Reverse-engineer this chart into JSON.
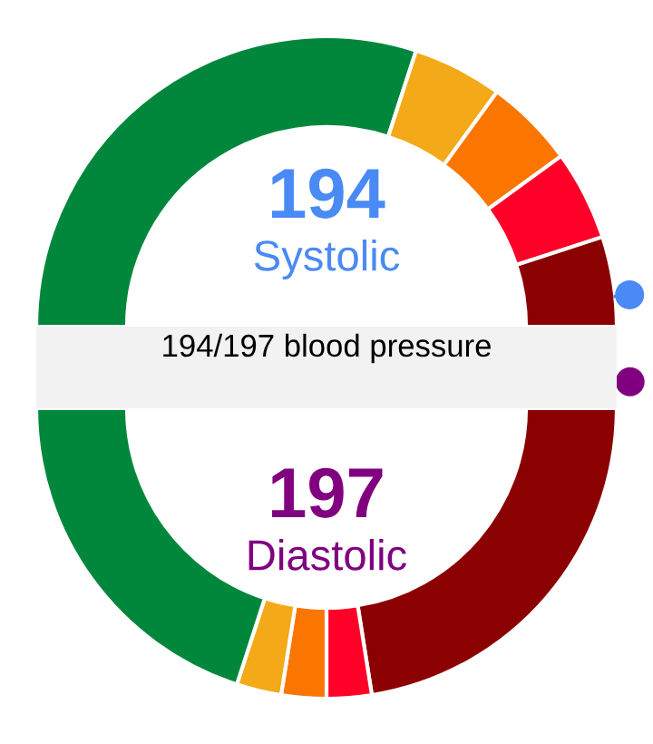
{
  "chart_data": [
    {
      "type": "donut",
      "title": "194/197 blood pressure",
      "categories": [
        null,
        null,
        null,
        null,
        null
      ],
      "values": [
        60,
        10,
        10,
        10,
        10
      ],
      "colors": [
        "#00873c",
        "#f4a918",
        "#fb7600",
        "#ff0029",
        "#8b0000"
      ],
      "annotations": [
        "194",
        "Systolic"
      ]
    },
    {
      "type": "donut",
      "categories": [
        null,
        null,
        null,
        null,
        null
      ],
      "values": [
        45,
        5,
        5,
        5,
        40
      ],
      "colors": [
        "#8b0000",
        "#ff0029",
        "#fb7600",
        "#f4a918",
        "#00873c"
      ],
      "annotations": [
        "197",
        "Diastolic"
      ]
    }
  ]
}
